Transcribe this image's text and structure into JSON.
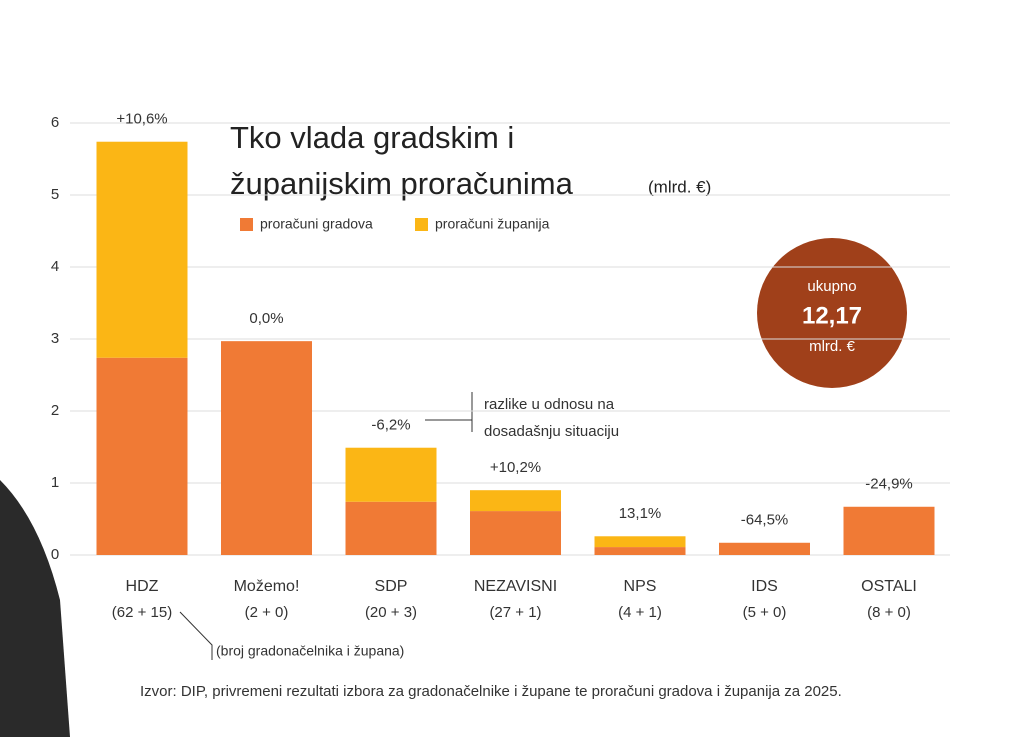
{
  "chart_data": {
    "type": "stacked_bar",
    "title_line1": "Tko vlada gradskim i",
    "title_line2": "županijskim proračunima",
    "unit": "(mlrd. €)",
    "categories": [
      "HDZ",
      "Možemo!",
      "SDP",
      "NEZAVISNI",
      "NPS",
      "IDS",
      "OSTALI"
    ],
    "category_notes": [
      "(62 + 15)",
      "(2 + 0)",
      "(20 + 3)",
      "(27 + 1)",
      "(4 + 1)",
      "(5 + 0)",
      "(8 + 0)"
    ],
    "change_labels": [
      "+10,6%",
      "0,0%",
      "-6,2%",
      "+10,2%",
      "13,1%",
      "-64,5%",
      "-24,9%"
    ],
    "series": [
      {
        "name": "proračuni gradova",
        "color": "#f07a35",
        "values": [
          2.74,
          2.97,
          0.74,
          0.61,
          0.11,
          0.17,
          0.67
        ]
      },
      {
        "name": "proračuni županija",
        "color": "#fbb615",
        "values": [
          3.0,
          0,
          0.75,
          0.29,
          0.15,
          0,
          0
        ]
      }
    ],
    "ylim": [
      0,
      6
    ],
    "yticks": [
      0,
      1,
      2,
      3,
      4,
      5,
      6
    ],
    "grid": true,
    "total_label": "ukupno",
    "total_value": "12,17",
    "total_unit": "mlrd. €",
    "total_color": "#a0401a",
    "annotation_line1": "razlike u odnosu na",
    "annotation_line2": "dosadašnju situaciju",
    "note": "(broj gradonačelnika i župana)",
    "source": "Izvor: DIP, privremeni rezultati izbora za gradonačelnike i župane te proračuni gradova i županija za 2025."
  }
}
